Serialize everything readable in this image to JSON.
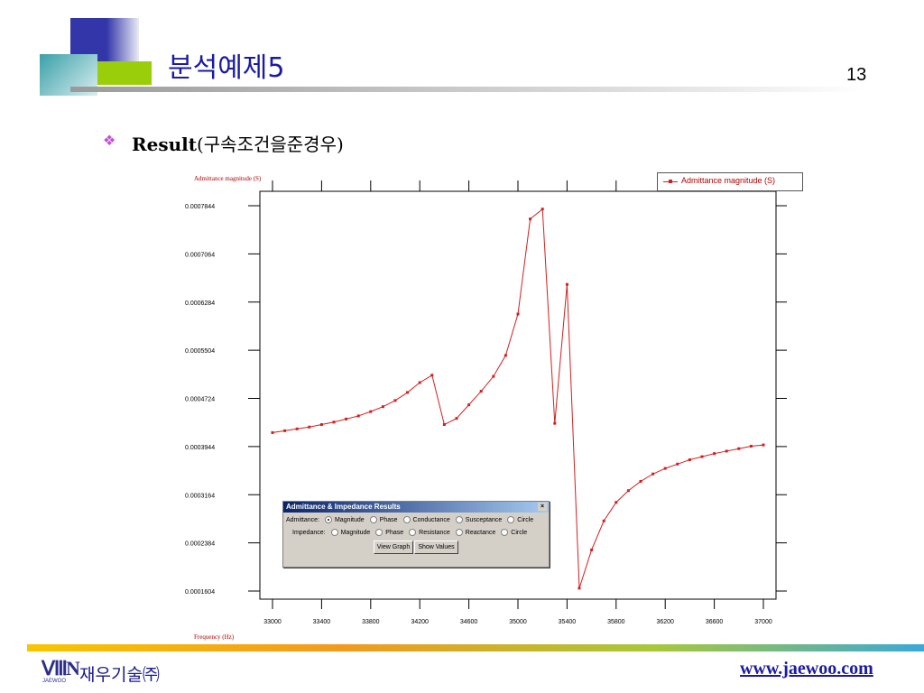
{
  "slide": {
    "title": "분석예제5",
    "page_number": "13",
    "subtitle_bold": "Result",
    "subtitle_rest": "(구속조건을준경우)",
    "bullet_icon": "diamond-bullet-icon"
  },
  "dialog": {
    "title": "Admittance & Impedance Results",
    "close_label": "×",
    "admittance_label": "Admittance:",
    "impedance_label": "Impedance:",
    "admittance_options": [
      {
        "label": "Magnitude",
        "checked": true
      },
      {
        "label": "Phase",
        "checked": false
      },
      {
        "label": "Conductance",
        "checked": false
      },
      {
        "label": "Susceptance",
        "checked": false
      },
      {
        "label": "Circle",
        "checked": false
      }
    ],
    "impedance_options": [
      {
        "label": "Magnitude",
        "checked": false
      },
      {
        "label": "Phase",
        "checked": false
      },
      {
        "label": "Resistance",
        "checked": false
      },
      {
        "label": "Reactance",
        "checked": false
      },
      {
        "label": "Circle",
        "checked": false
      }
    ],
    "view_graph_label": "View Graph",
    "show_values_label": "Show Values"
  },
  "footer": {
    "company": "재우기술㈜",
    "logo_text": "JAEWOO",
    "website": "www.jaewoo.com"
  },
  "colors": {
    "series": "#d21f1f",
    "title": "#1a1aa6",
    "axis_label": "#b00000"
  },
  "chart_data": {
    "type": "line",
    "ylabel": "Admittance magnitude (S)",
    "xlabel": "Frequency (Hz)",
    "xlim": [
      33000,
      37000
    ],
    "ylim": [
      0.00015,
      0.0008
    ],
    "x_ticks": [
      "33000",
      "33400",
      "33800",
      "34200",
      "34600",
      "35000",
      "35400",
      "35800",
      "36200",
      "36600",
      "37000"
    ],
    "x_tick_values": [
      33000,
      33400,
      33800,
      34200,
      34600,
      35000,
      35400,
      35800,
      36200,
      36600,
      37000
    ],
    "y_ticks": [
      "0.0001604",
      "0.0002384",
      "0.0003164",
      "0.0003944",
      "0.0004724",
      "0.0005504",
      "0.0006284",
      "0.0007064",
      "0.0007844"
    ],
    "y_tick_values": [
      0.0001604,
      0.0002384,
      0.0003164,
      0.0003944,
      0.0004724,
      0.0005504,
      0.0006284,
      0.0007064,
      0.0007844
    ],
    "grid": false,
    "legend_position": "top-right",
    "series": [
      {
        "name": "Admittance magnitude (S)",
        "x": [
          33000,
          33100,
          33200,
          33300,
          33400,
          33500,
          33600,
          33700,
          33800,
          33900,
          34000,
          34100,
          34200,
          34300,
          34400,
          34500,
          34600,
          34700,
          34800,
          34900,
          35000,
          35100,
          35200,
          35300,
          35400,
          35500,
          35600,
          35700,
          35800,
          35900,
          36000,
          36100,
          36200,
          36300,
          36400,
          36500,
          36600,
          36700,
          36800,
          36900,
          37000
        ],
        "values": [
          0.000417,
          0.00042,
          0.000423,
          0.000426,
          0.00043,
          0.000434,
          0.000439,
          0.000444,
          0.000451,
          0.000459,
          0.000469,
          0.000482,
          0.000498,
          0.00051,
          0.00043,
          0.00044,
          0.000462,
          0.000484,
          0.000508,
          0.000542,
          0.000609,
          0.000763,
          0.000779,
          0.000432,
          0.000657,
          0.000165,
          0.000227,
          0.000274,
          0.000304,
          0.000323,
          0.000338,
          0.00035,
          0.000359,
          0.000366,
          0.000373,
          0.000378,
          0.000383,
          0.000387,
          0.000391,
          0.000395,
          0.000397
        ]
      }
    ]
  }
}
